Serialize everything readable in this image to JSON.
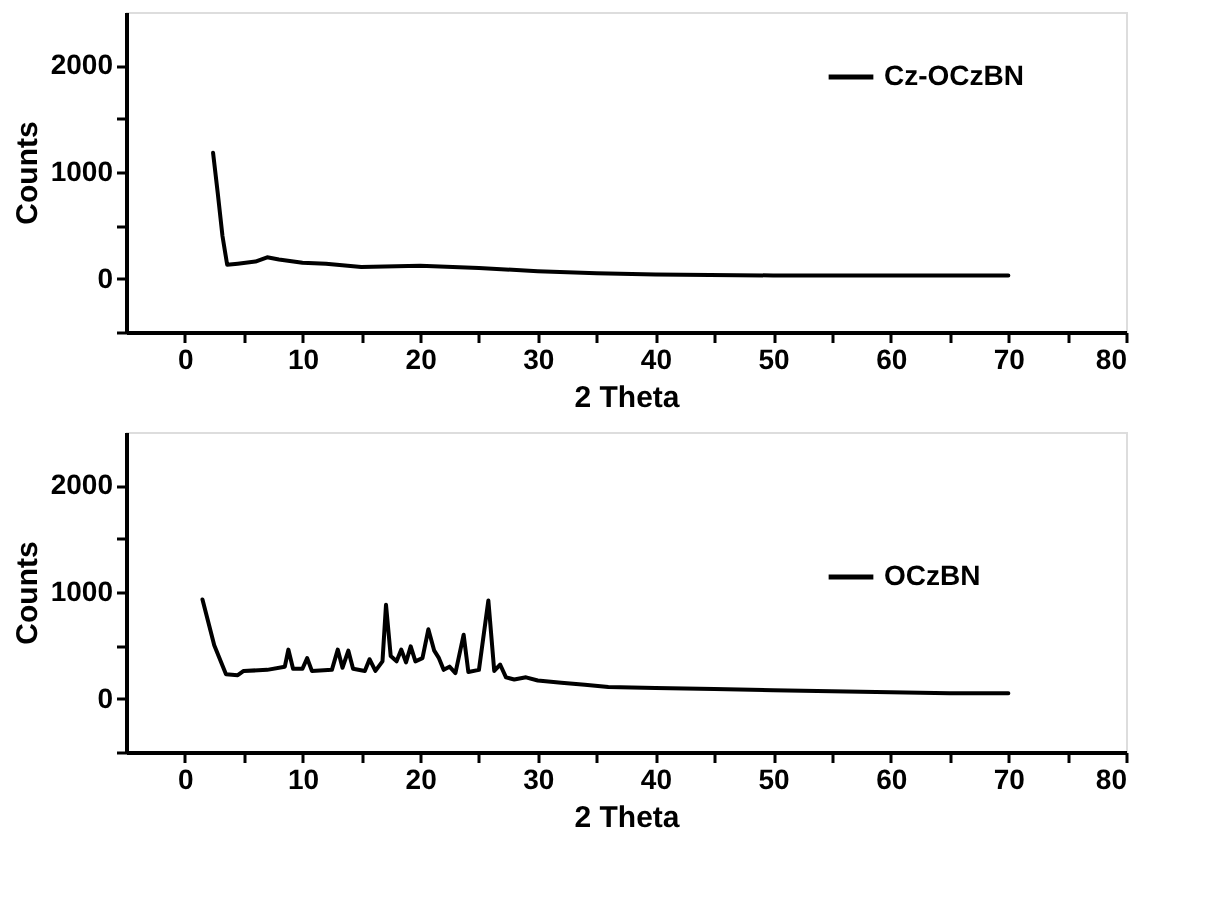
{
  "chart_data": [
    {
      "type": "line",
      "xlabel": "2 Theta",
      "ylabel": "Counts",
      "xlim": [
        -5,
        80
      ],
      "ylim": [
        -500,
        2500
      ],
      "xticks": [
        0,
        {
          "value": 5,
          "label": null
        },
        10,
        {
          "value": 15,
          "label": null
        },
        20,
        {
          "value": 25,
          "label": null
        },
        30,
        {
          "value": 35,
          "label": null
        },
        40,
        {
          "value": 45,
          "label": null
        },
        50,
        {
          "value": 55,
          "label": null
        },
        60,
        {
          "value": 65,
          "label": null
        },
        70,
        {
          "value": 75,
          "label": null
        },
        80
      ],
      "yticks": [
        {
          "value": -500,
          "label": null
        },
        0,
        {
          "value": 500,
          "label": null
        },
        1000,
        {
          "value": 1500,
          "label": null
        },
        2000
      ],
      "grid": false,
      "legend": "top right",
      "marker": "none",
      "line_style": "solid",
      "series": [
        {
          "name": "Cz-OCzBN",
          "color": "#000000",
          "x": [
            2.4,
            2.8,
            3.2,
            3.6,
            4.5,
            6,
            7,
            8,
            10,
            12,
            15,
            20,
            25,
            30,
            35,
            40,
            50,
            60,
            70
          ],
          "values": [
            1180,
            800,
            400,
            130,
            140,
            160,
            200,
            180,
            150,
            140,
            110,
            120,
            100,
            70,
            50,
            40,
            30,
            30,
            30
          ]
        }
      ]
    },
    {
      "type": "line",
      "xlabel": "2 Theta",
      "ylabel": "Counts",
      "xlim": [
        -5,
        80
      ],
      "ylim": [
        -500,
        2500
      ],
      "xticks": [
        0,
        {
          "value": 5,
          "label": null
        },
        10,
        {
          "value": 15,
          "label": null
        },
        20,
        {
          "value": 25,
          "label": null
        },
        30,
        {
          "value": 35,
          "label": null
        },
        40,
        {
          "value": 45,
          "label": null
        },
        50,
        {
          "value": 55,
          "label": null
        },
        60,
        {
          "value": 65,
          "label": null
        },
        70,
        {
          "value": 75,
          "label": null
        },
        80
      ],
      "yticks": [
        {
          "value": -500,
          "label": null
        },
        0,
        {
          "value": 500,
          "label": null
        },
        1000,
        {
          "value": 1500,
          "label": null
        },
        2000
      ],
      "grid": false,
      "legend": "right",
      "marker": "none",
      "line_style": "solid",
      "series": [
        {
          "name": "OCzBN",
          "color": "#000000",
          "x": [
            1.5,
            2.5,
            3.5,
            4.5,
            5,
            7,
            8.5,
            8.8,
            9.2,
            10,
            10.4,
            10.8,
            12.5,
            13,
            13.4,
            13.9,
            14.3,
            15.3,
            15.7,
            16.2,
            16.8,
            17.1,
            17.5,
            18,
            18.4,
            18.8,
            19.2,
            19.6,
            20.2,
            20.7,
            21.2,
            21.6,
            22,
            22.5,
            23,
            23.7,
            24.1,
            25,
            25.8,
            26.3,
            26.8,
            27.3,
            28,
            29,
            30,
            32,
            34,
            36,
            40,
            45,
            50,
            55,
            60,
            65,
            70
          ],
          "values": [
            930,
            500,
            230,
            220,
            260,
            270,
            300,
            460,
            280,
            280,
            380,
            260,
            270,
            460,
            290,
            450,
            280,
            260,
            370,
            260,
            350,
            880,
            400,
            350,
            460,
            340,
            490,
            350,
            380,
            650,
            450,
            380,
            270,
            300,
            240,
            600,
            250,
            270,
            920,
            260,
            320,
            200,
            180,
            200,
            170,
            150,
            130,
            110,
            100,
            90,
            80,
            70,
            60,
            50,
            50
          ]
        }
      ]
    }
  ]
}
